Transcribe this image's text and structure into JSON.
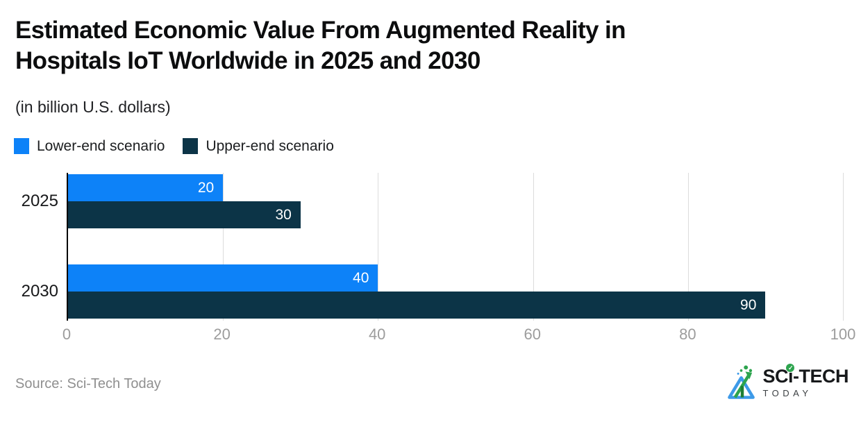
{
  "page": {
    "title_lines": [
      "Estimated Economic Value From Augmented Reality in",
      "Hospitals IoT Worldwide in 2025 and 2030"
    ],
    "subtitle": "(in billion U.S. dollars)"
  },
  "chart_data": {
    "type": "bar",
    "orientation": "horizontal",
    "title": "Estimated Economic Value From Augmented Reality in Hospitals IoT Worldwide in 2025 and 2030",
    "subtitle": "(in billion U.S. dollars)",
    "categories": [
      "2025",
      "2030"
    ],
    "series": [
      {
        "name": "Lower-end scenario",
        "color": "#0d82f8",
        "values": [
          20,
          40
        ]
      },
      {
        "name": "Upper-end scenario",
        "color": "#0c3447",
        "values": [
          30,
          90
        ]
      }
    ],
    "xlim": [
      0,
      100
    ],
    "xticks": [
      0,
      20,
      40,
      60,
      80,
      100
    ],
    "grid": true,
    "legend_position": "top-left",
    "value_labels": "inside-end",
    "value_label_color": "#ffffff",
    "axis_line_color": "#000000",
    "gridline_color": "#dcdcdc"
  },
  "footer": {
    "source": "Source: Sci-Tech Today",
    "logo": {
      "brand_pre": "SC",
      "brand_i": "i",
      "brand_post": "-TECH",
      "check": "✓",
      "tagline": "TODAY",
      "green": "#2da44e",
      "blue": "#3d9ae8"
    }
  }
}
